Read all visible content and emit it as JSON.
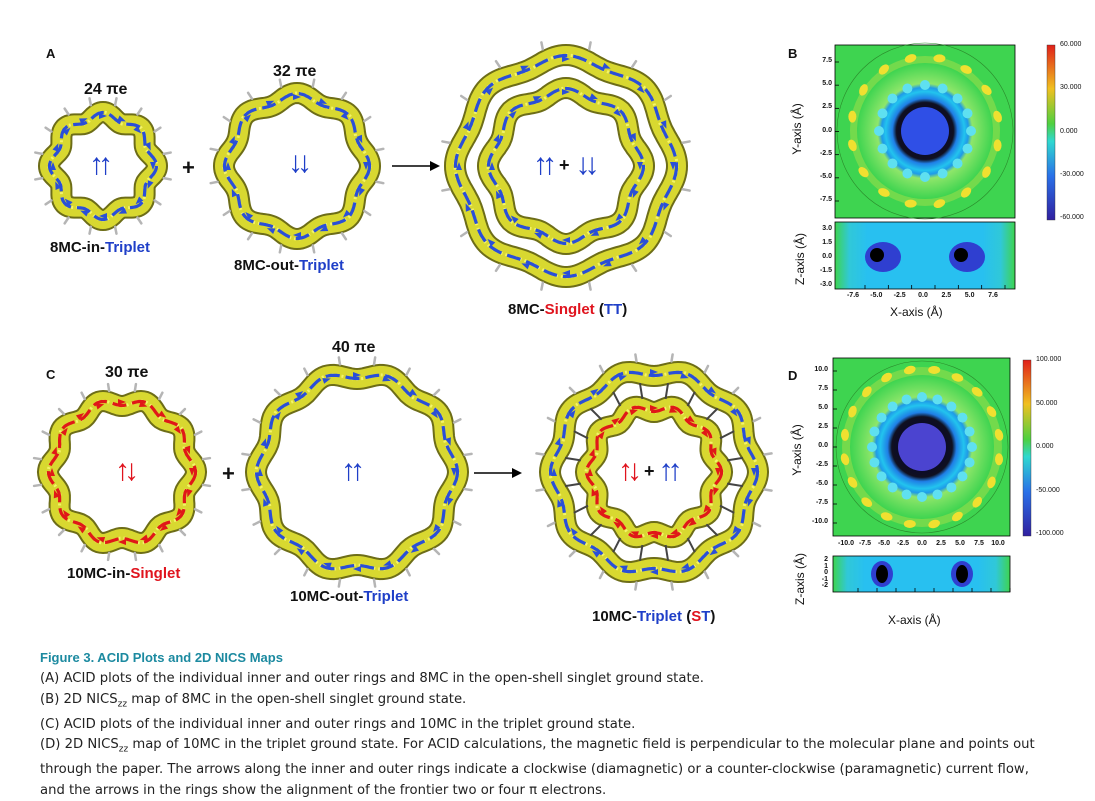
{
  "panels": {
    "A": {
      "letter": "A",
      "pi_inner": "24 πe",
      "pi_outer": "32 πe",
      "label_inner": {
        "pre": "8MC-in-",
        "post": "Triplet"
      },
      "label_outer": {
        "pre": "8MC-out-",
        "post": "Triplet"
      },
      "label_combined": {
        "pre": "8MC-",
        "mid": "Singlet",
        "open": " (",
        "code": "TT",
        "close": ")"
      },
      "plus": "+",
      "inner_spin": "↑↑",
      "outer_spin": "↓↓",
      "combined_spin_left": "↑↑",
      "combined_plus": "+",
      "combined_spin_right": "↓↓"
    },
    "B": {
      "letter": "B",
      "y_title": "Y-axis (Å)",
      "z_title": "Z-axis (Å)",
      "x_title": "X-axis (Å)",
      "y_ticks": [
        "7.5",
        "5.0",
        "2.5",
        "0.0",
        "-2.5",
        "-5.0",
        "-7.5"
      ],
      "z_ticks": [
        "3.0",
        "1.5",
        "0.0",
        "-1.5",
        "-3.0"
      ],
      "x_ticks": [
        "-7.6",
        "-5.0",
        "-2.5",
        "0.0",
        "2.5",
        "5.0",
        "7.6"
      ],
      "colorbar_ticks": [
        "60.000",
        "30.000",
        "0.000",
        "-30.000",
        "-60.000"
      ]
    },
    "C": {
      "letter": "C",
      "pi_inner": "30 πe",
      "pi_outer": "40 πe",
      "label_inner": {
        "pre": "10MC-in-",
        "post": "Singlet"
      },
      "label_outer": {
        "pre": "10MC-out-",
        "post": "Triplet"
      },
      "label_combined": {
        "pre": "10MC-",
        "mid": "Triplet",
        "open": " (",
        "code_s": "S",
        "code_t": "T",
        "close": ")"
      },
      "plus": "+",
      "inner_spin": "↑↓",
      "outer_spin": "↑↑",
      "combined_spin_left": "↑↓",
      "combined_plus": "+",
      "combined_spin_right": "↑↑"
    },
    "D": {
      "letter": "D",
      "y_title": "Y-axis (Å)",
      "z_title": "Z-axis (Å)",
      "x_title": "X-axis (Å)",
      "y_ticks": [
        "10.0",
        "7.5",
        "5.0",
        "2.5",
        "0.0",
        "-2.5",
        "-5.0",
        "-7.5",
        "-10.0"
      ],
      "z_ticks": [
        "2",
        "1",
        "0",
        "-1",
        "-2"
      ],
      "x_ticks": [
        "-10.0",
        "-7.5",
        "-5.0",
        "-2.5",
        "0.0",
        "2.5",
        "5.0",
        "7.5",
        "10.0"
      ],
      "colorbar_ticks": [
        "100.000",
        "50.000",
        "0.000",
        "-50.000",
        "-100.000"
      ]
    }
  },
  "caption": {
    "title": "Figure 3.  ACID Plots and 2D NICS Maps",
    "lines": [
      "(A) ACID plots of the individual inner and outer rings and 8MC in the open-shell singlet ground state.",
      "(B) 2D NICSzz map of 8MC in the open-shell singlet ground state.",
      "(C) ACID plots of the individual inner and outer rings and 10MC in the triplet ground state.",
      "(D) 2D NICSzz map of 10MC in the triplet ground state. For ACID calculations, the magnetic field is perpendicular to the molecular plane and points out",
      "through the paper. The arrows along the inner and outer rings indicate a clockwise (diamagnetic) or a counter-clockwise (paramagnetic) current flow,",
      "and the arrows in the rings show the alignment of the frontier two or four π electrons."
    ]
  },
  "colors": {
    "ring_yellow": "#d8d830",
    "ring_dark": "#6d6d18",
    "arrow_blue": "#2a4fd8",
    "arrow_red": "#e01818",
    "caption_teal": "#1c8aa0"
  }
}
